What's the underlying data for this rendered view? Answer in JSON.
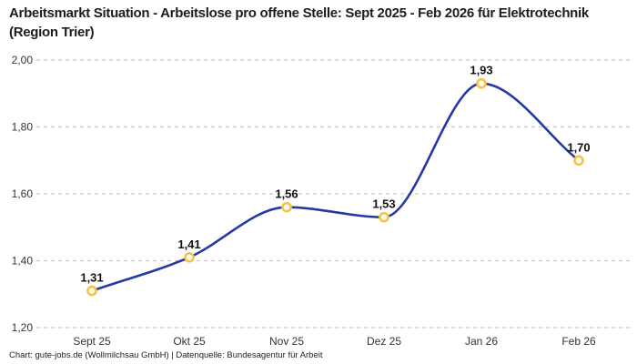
{
  "header": {
    "title": "Arbeitsmarkt Situation - Arbeitslose pro offene Stelle: Sept 2025 - Feb 2026 für Elektrotechnik (Region Trier)"
  },
  "footer": {
    "credit": "Chart: gute-jobs.de (Wollmilchsau GmbH) | Datenquelle: Bundesagentur für Arbeit"
  },
  "colors": {
    "line": "#2538a6",
    "marker_ring": "#f6c342",
    "marker_fill": "#ffffff",
    "grid": "#c8c8c8",
    "tick_text": "#333333",
    "point_label_text": "#111111",
    "title_text": "#1d1d1f"
  },
  "chart_data": {
    "type": "line",
    "title": "Arbeitsmarkt Situation - Arbeitslose pro offene Stelle: Sept 2025 - Feb 2026 für Elektrotechnik (Region Trier)",
    "xlabel": "",
    "ylabel": "",
    "categories": [
      "Sept 25",
      "Okt 25",
      "Nov 25",
      "Dez 25",
      "Jan 26",
      "Feb 26"
    ],
    "values": [
      1.31,
      1.41,
      1.56,
      1.53,
      1.93,
      1.7
    ],
    "point_labels": [
      "1,31",
      "1,41",
      "1,56",
      "1,53",
      "1,93",
      "1,70"
    ],
    "series_name": "Arbeitslose pro offene Stelle",
    "ylim": [
      1.2,
      2.0
    ],
    "y_ticks": [
      {
        "value": 2.0,
        "label": "2,00"
      },
      {
        "value": 1.8,
        "label": "1,80"
      },
      {
        "value": 1.6,
        "label": "1,60"
      },
      {
        "value": 1.4,
        "label": "1,40"
      },
      {
        "value": 1.2,
        "label": "1,20"
      }
    ],
    "grid": "horizontal-dashed",
    "legend_position": "none",
    "interpolation": "monotone-cubic"
  }
}
